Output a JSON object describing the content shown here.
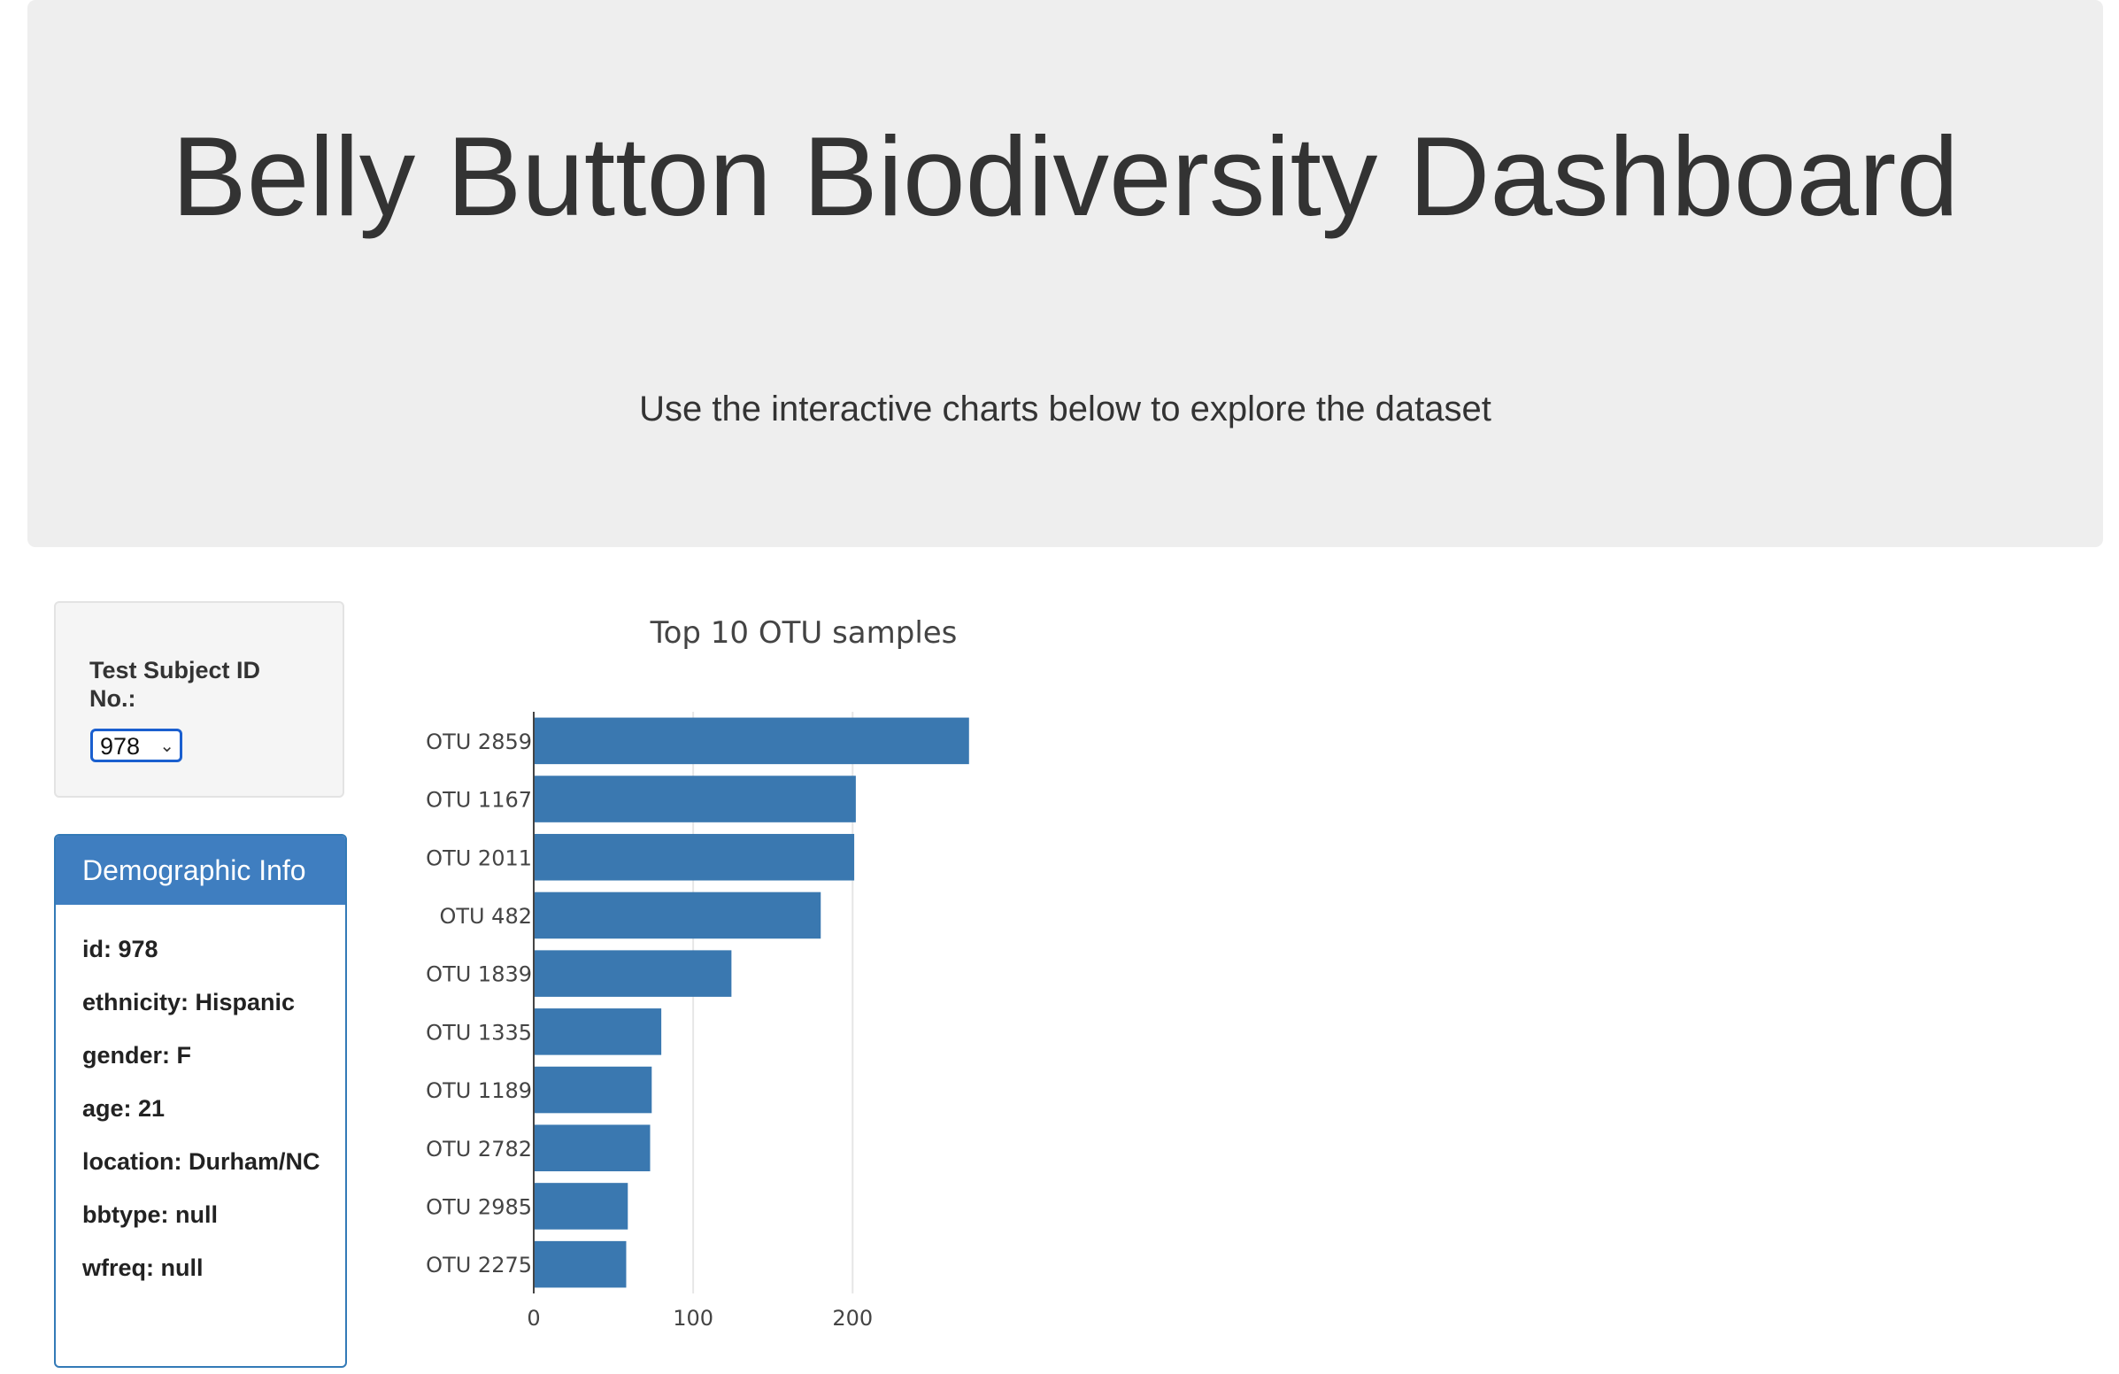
{
  "header": {
    "title": "Belly Button Biodiversity Dashboard",
    "subtitle": "Use the interactive charts below to explore the dataset"
  },
  "selector": {
    "label": "Test Subject ID No.:",
    "selected": "978"
  },
  "demographics": {
    "heading": "Demographic Info",
    "rows": [
      "id: 978",
      "ethnicity: Hispanic",
      "gender: F",
      "age: 21",
      "location: Durham/NC",
      "bbtype: null",
      "wfreq: null"
    ]
  },
  "chart_data": {
    "type": "bar",
    "orientation": "horizontal",
    "title": "Top 10 OTU samples",
    "categories": [
      "OTU 2859",
      "OTU 1167",
      "OTU 2011",
      "OTU 482",
      "OTU 1839",
      "OTU 1335",
      "OTU 1189",
      "OTU 2782",
      "OTU 2985",
      "OTU 2275"
    ],
    "values": [
      273,
      202,
      201,
      180,
      124,
      80,
      74,
      73,
      59,
      58
    ],
    "xticks": [
      0,
      100,
      200
    ],
    "xlim": [
      0,
      287
    ],
    "grid": true,
    "color": "#3a78b0"
  }
}
